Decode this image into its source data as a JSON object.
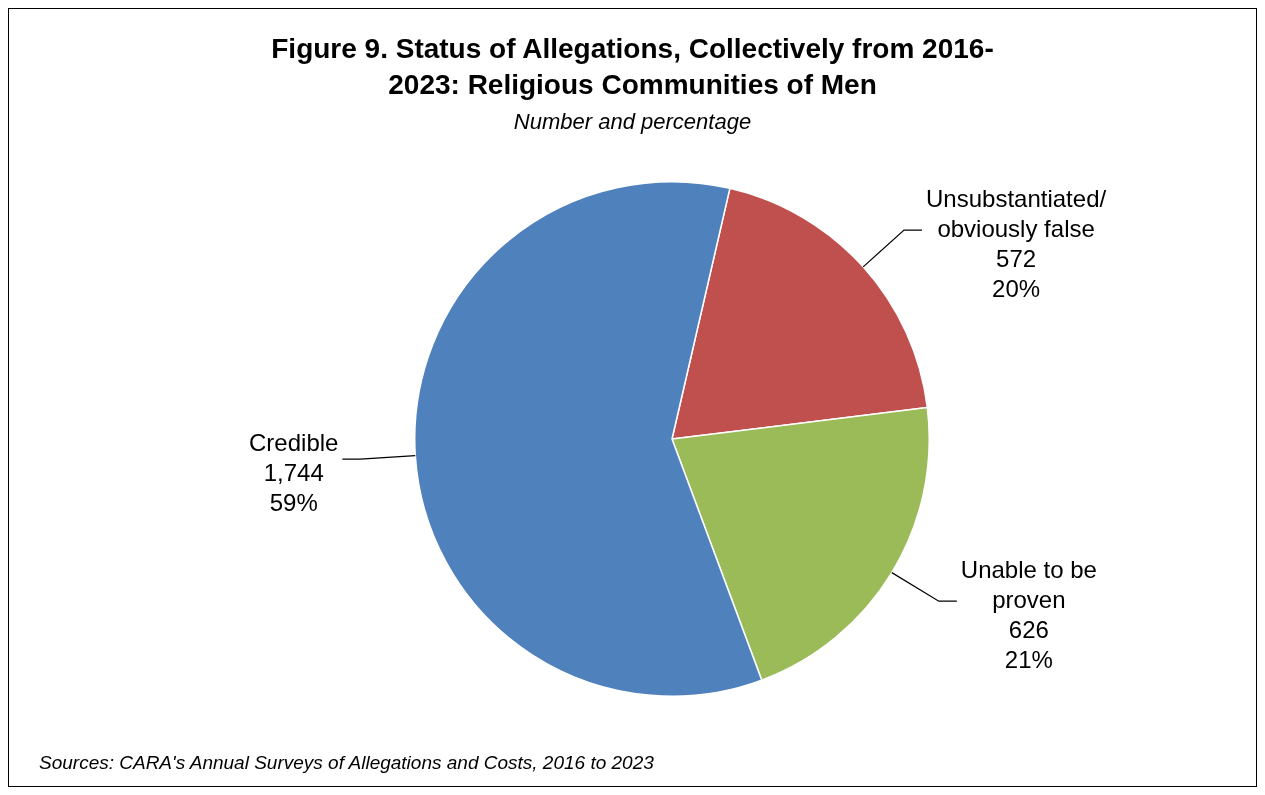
{
  "chart_data": {
    "type": "pie",
    "title": "Figure 9. Status of Allegations, Collectively from 2016-2023: Religious Communities of Men",
    "subtitle": "Number and percentage",
    "categories": [
      "Unsubstantiated/ obviously false",
      "Unable to be proven",
      "Credible"
    ],
    "values": [
      572,
      626,
      1744
    ],
    "colors": [
      "#c0504d",
      "#9bbb59",
      "#4f81bd"
    ],
    "value_labels": [
      "572\n20%",
      "626\n21%",
      "1,744\n59%"
    ],
    "legend": false,
    "annotations": [
      "Sources: CARA's Annual Surveys of Allegations and Costs, 2016 to 2023"
    ]
  }
}
